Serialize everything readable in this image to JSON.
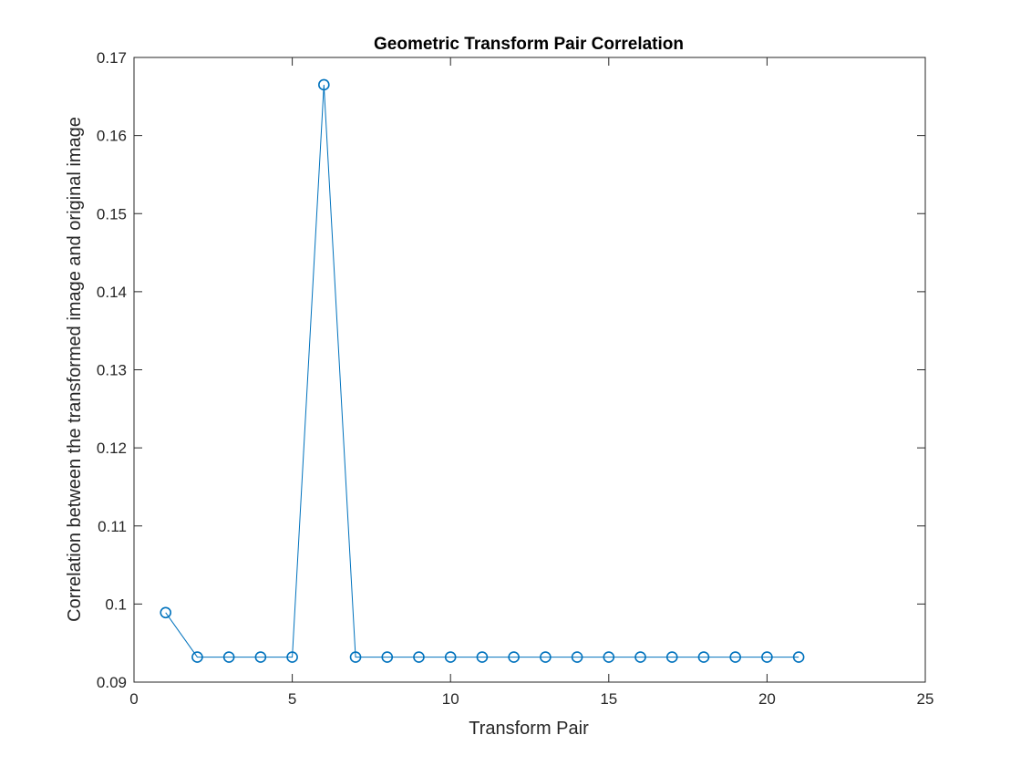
{
  "chart_data": {
    "type": "line",
    "title": "Geometric Transform Pair Correlation",
    "xlabel": "Transform Pair",
    "ylabel": "Correlation between the transformed image and original image",
    "xlim": [
      0,
      25
    ],
    "ylim": [
      0.09,
      0.17
    ],
    "xticks": [
      0,
      5,
      10,
      15,
      20,
      25
    ],
    "xtick_labels": [
      "0",
      "5",
      "10",
      "15",
      "20",
      "25"
    ],
    "yticks": [
      0.09,
      0.1,
      0.11,
      0.12,
      0.13,
      0.14,
      0.15,
      0.16,
      0.17
    ],
    "ytick_labels": [
      "0.09",
      "0.1",
      "0.11",
      "0.12",
      "0.13",
      "0.14",
      "0.15",
      "0.16",
      "0.17"
    ],
    "grid": false,
    "series": [
      {
        "color": "#0072bd",
        "marker": "circle",
        "x": [
          1,
          2,
          3,
          4,
          5,
          6,
          7,
          8,
          9,
          10,
          11,
          12,
          13,
          14,
          15,
          16,
          17,
          18,
          19,
          20,
          21
        ],
        "y": [
          0.0989,
          0.0932,
          0.0932,
          0.0932,
          0.0932,
          0.1665,
          0.0932,
          0.0932,
          0.0932,
          0.0932,
          0.0932,
          0.0932,
          0.0932,
          0.0932,
          0.0932,
          0.0932,
          0.0932,
          0.0932,
          0.0932,
          0.0932,
          0.0932
        ]
      }
    ]
  }
}
